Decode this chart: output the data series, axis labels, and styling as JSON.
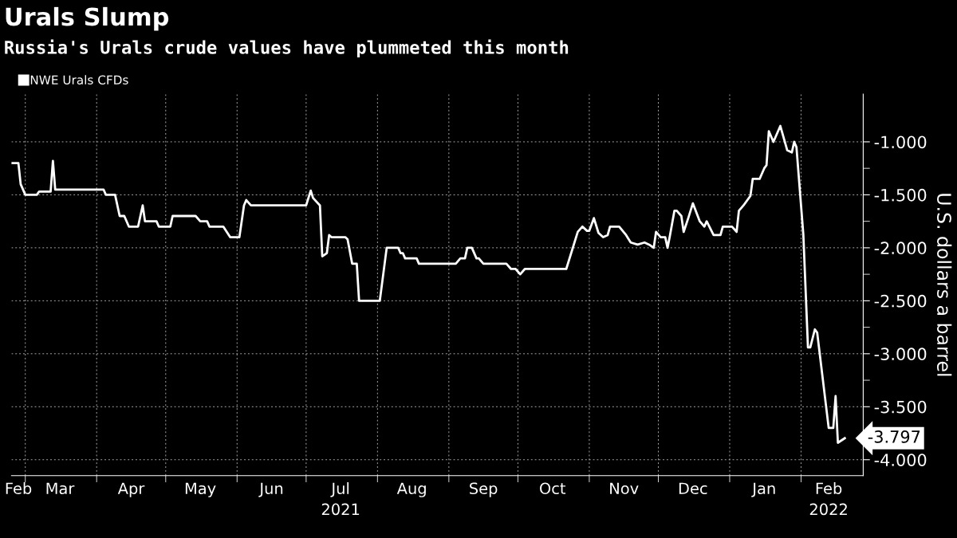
{
  "chart_data": {
    "type": "line",
    "title": "Urals Slump",
    "subtitle": "Russia's Urals crude values have plummeted this month",
    "ylabel": "U.S. dollars a barrel",
    "x": [
      "2021-02-23",
      "2021-02-26",
      "2021-02-27",
      "2021-03-01",
      "2021-03-06",
      "2021-03-07",
      "2021-03-12",
      "2021-03-13",
      "2021-03-14",
      "2021-04-04",
      "2021-04-05",
      "2021-04-09",
      "2021-04-11",
      "2021-04-13",
      "2021-04-15",
      "2021-04-19",
      "2021-04-21",
      "2021-04-22",
      "2021-04-27",
      "2021-04-28",
      "2021-05-03",
      "2021-05-04",
      "2021-05-14",
      "2021-05-16",
      "2021-05-19",
      "2021-05-20",
      "2021-05-26",
      "2021-05-29",
      "2021-06-02",
      "2021-06-04",
      "2021-06-05",
      "2021-06-07",
      "2021-07-01",
      "2021-07-03",
      "2021-07-04",
      "2021-07-07",
      "2021-07-08",
      "2021-07-10",
      "2021-07-11",
      "2021-07-12",
      "2021-07-18",
      "2021-07-19",
      "2021-07-21",
      "2021-07-23",
      "2021-07-24",
      "2021-08-02",
      "2021-08-05",
      "2021-08-10",
      "2021-08-11",
      "2021-08-12",
      "2021-08-13",
      "2021-08-18",
      "2021-08-19",
      "2021-09-04",
      "2021-09-06",
      "2021-09-08",
      "2021-09-09",
      "2021-09-11",
      "2021-09-13",
      "2021-09-14",
      "2021-09-16",
      "2021-09-26",
      "2021-09-28",
      "2021-09-30",
      "2021-10-02",
      "2021-10-04",
      "2021-10-22",
      "2021-10-27",
      "2021-10-29",
      "2021-10-31",
      "2021-11-01",
      "2021-11-03",
      "2021-11-05",
      "2021-11-07",
      "2021-11-09",
      "2021-11-10",
      "2021-11-14",
      "2021-11-17",
      "2021-11-19",
      "2021-11-22",
      "2021-11-25",
      "2021-11-27",
      "2021-11-29",
      "2021-11-30",
      "2021-12-02",
      "2021-12-04",
      "2021-12-05",
      "2021-12-06",
      "2021-12-08",
      "2021-12-09",
      "2021-12-11",
      "2021-12-12",
      "2021-12-14",
      "2021-12-16",
      "2021-12-19",
      "2021-12-21",
      "2021-12-22",
      "2021-12-25",
      "2021-12-28",
      "2021-12-29",
      "2022-01-02",
      "2022-01-04",
      "2022-01-05",
      "2022-01-07",
      "2022-01-10",
      "2022-01-11",
      "2022-01-14",
      "2022-01-16",
      "2022-01-17",
      "2022-01-18",
      "2022-01-20",
      "2022-01-23",
      "2022-01-26",
      "2022-01-28",
      "2022-01-29",
      "2022-01-30",
      "2022-02-02",
      "2022-02-04",
      "2022-02-05",
      "2022-02-07",
      "2022-02-08",
      "2022-02-13",
      "2022-02-15",
      "2022-02-16",
      "2022-02-17",
      "2022-02-20"
    ],
    "series": [
      {
        "name": "NWE Urals CFDs",
        "color": "#ffffff",
        "values": [
          -1.2,
          -1.2,
          -1.4,
          -1.5,
          -1.5,
          -1.47,
          -1.47,
          -1.18,
          -1.45,
          -1.45,
          -1.5,
          -1.5,
          -1.7,
          -1.7,
          -1.8,
          -1.8,
          -1.6,
          -1.75,
          -1.75,
          -1.8,
          -1.8,
          -1.7,
          -1.7,
          -1.75,
          -1.75,
          -1.8,
          -1.8,
          -1.9,
          -1.9,
          -1.6,
          -1.55,
          -1.6,
          -1.6,
          -1.46,
          -1.53,
          -1.6,
          -2.08,
          -2.05,
          -1.88,
          -1.9,
          -1.9,
          -1.92,
          -2.15,
          -2.15,
          -2.5,
          -2.5,
          -2.0,
          -2.0,
          -2.05,
          -2.05,
          -2.1,
          -2.1,
          -2.15,
          -2.15,
          -2.1,
          -2.1,
          -2.0,
          -2.0,
          -2.1,
          -2.1,
          -2.15,
          -2.15,
          -2.2,
          -2.2,
          -2.25,
          -2.2,
          -2.2,
          -1.85,
          -1.8,
          -1.84,
          -1.84,
          -1.72,
          -1.86,
          -1.9,
          -1.88,
          -1.8,
          -1.8,
          -1.88,
          -1.95,
          -1.97,
          -1.95,
          -1.97,
          -2.0,
          -1.85,
          -1.9,
          -1.9,
          -2.0,
          -1.89,
          -1.65,
          -1.65,
          -1.7,
          -1.85,
          -1.72,
          -1.58,
          -1.75,
          -1.8,
          -1.75,
          -1.88,
          -1.88,
          -1.8,
          -1.8,
          -1.85,
          -1.65,
          -1.6,
          -1.51,
          -1.35,
          -1.35,
          -1.25,
          -1.22,
          -0.9,
          -1.0,
          -0.85,
          -1.08,
          -1.1,
          -1.0,
          -1.05,
          -1.88,
          -2.94,
          -2.94,
          -2.77,
          -2.8,
          -3.7,
          -3.7,
          -3.4,
          -3.84,
          -3.797
        ]
      }
    ],
    "xlim": [
      "2021-02-23",
      "2022-02-28"
    ],
    "xticks": [
      {
        "value": "2021-02-26",
        "label": "Feb"
      },
      {
        "value": "2021-03-01",
        "label": null
      },
      {
        "value": "2021-03-16",
        "label": "Mar"
      },
      {
        "value": "2021-04-01",
        "label": null
      },
      {
        "value": "2021-04-16",
        "label": "Apr"
      },
      {
        "value": "2021-05-01",
        "label": null
      },
      {
        "value": "2021-05-16",
        "label": "May"
      },
      {
        "value": "2021-06-01",
        "label": null
      },
      {
        "value": "2021-06-16",
        "label": "Jun"
      },
      {
        "value": "2021-07-01",
        "label": null
      },
      {
        "value": "2021-07-16",
        "label": "Jul\n2021"
      },
      {
        "value": "2021-08-01",
        "label": null
      },
      {
        "value": "2021-08-16",
        "label": "Aug"
      },
      {
        "value": "2021-09-01",
        "label": null
      },
      {
        "value": "2021-09-16",
        "label": "Sep"
      },
      {
        "value": "2021-10-01",
        "label": null
      },
      {
        "value": "2021-10-16",
        "label": "Oct"
      },
      {
        "value": "2021-11-01",
        "label": null
      },
      {
        "value": "2021-11-16",
        "label": "Nov"
      },
      {
        "value": "2021-12-01",
        "label": null
      },
      {
        "value": "2021-12-16",
        "label": "Dec"
      },
      {
        "value": "2022-01-01",
        "label": null
      },
      {
        "value": "2022-01-16",
        "label": "Jan"
      },
      {
        "value": "2022-02-01",
        "label": null
      },
      {
        "value": "2022-02-13",
        "label": "Feb\n2022"
      }
    ],
    "ylim": [
      -4.15,
      -0.55
    ],
    "yticks": [
      {
        "value": -1,
        "label": "-1.000"
      },
      {
        "value": -1.25,
        "label": null
      },
      {
        "value": -1.5,
        "label": "-1.500"
      },
      {
        "value": -1.75,
        "label": null
      },
      {
        "value": -2,
        "label": "-2.000"
      },
      {
        "value": -2.25,
        "label": null
      },
      {
        "value": -2.5,
        "label": "-2.500"
      },
      {
        "value": -2.75,
        "label": null
      },
      {
        "value": -3,
        "label": "-3.000"
      },
      {
        "value": -3.25,
        "label": null
      },
      {
        "value": -3.5,
        "label": "-3.500"
      },
      {
        "value": -3.75,
        "label": null
      },
      {
        "value": -4,
        "label": "-4.000"
      }
    ],
    "annotations": [
      {
        "text": "-3.797",
        "x": "2022-02-20",
        "y": -3.797
      }
    ],
    "grid": true,
    "legend": "top left",
    "marker": "none",
    "line_style": "solid"
  }
}
